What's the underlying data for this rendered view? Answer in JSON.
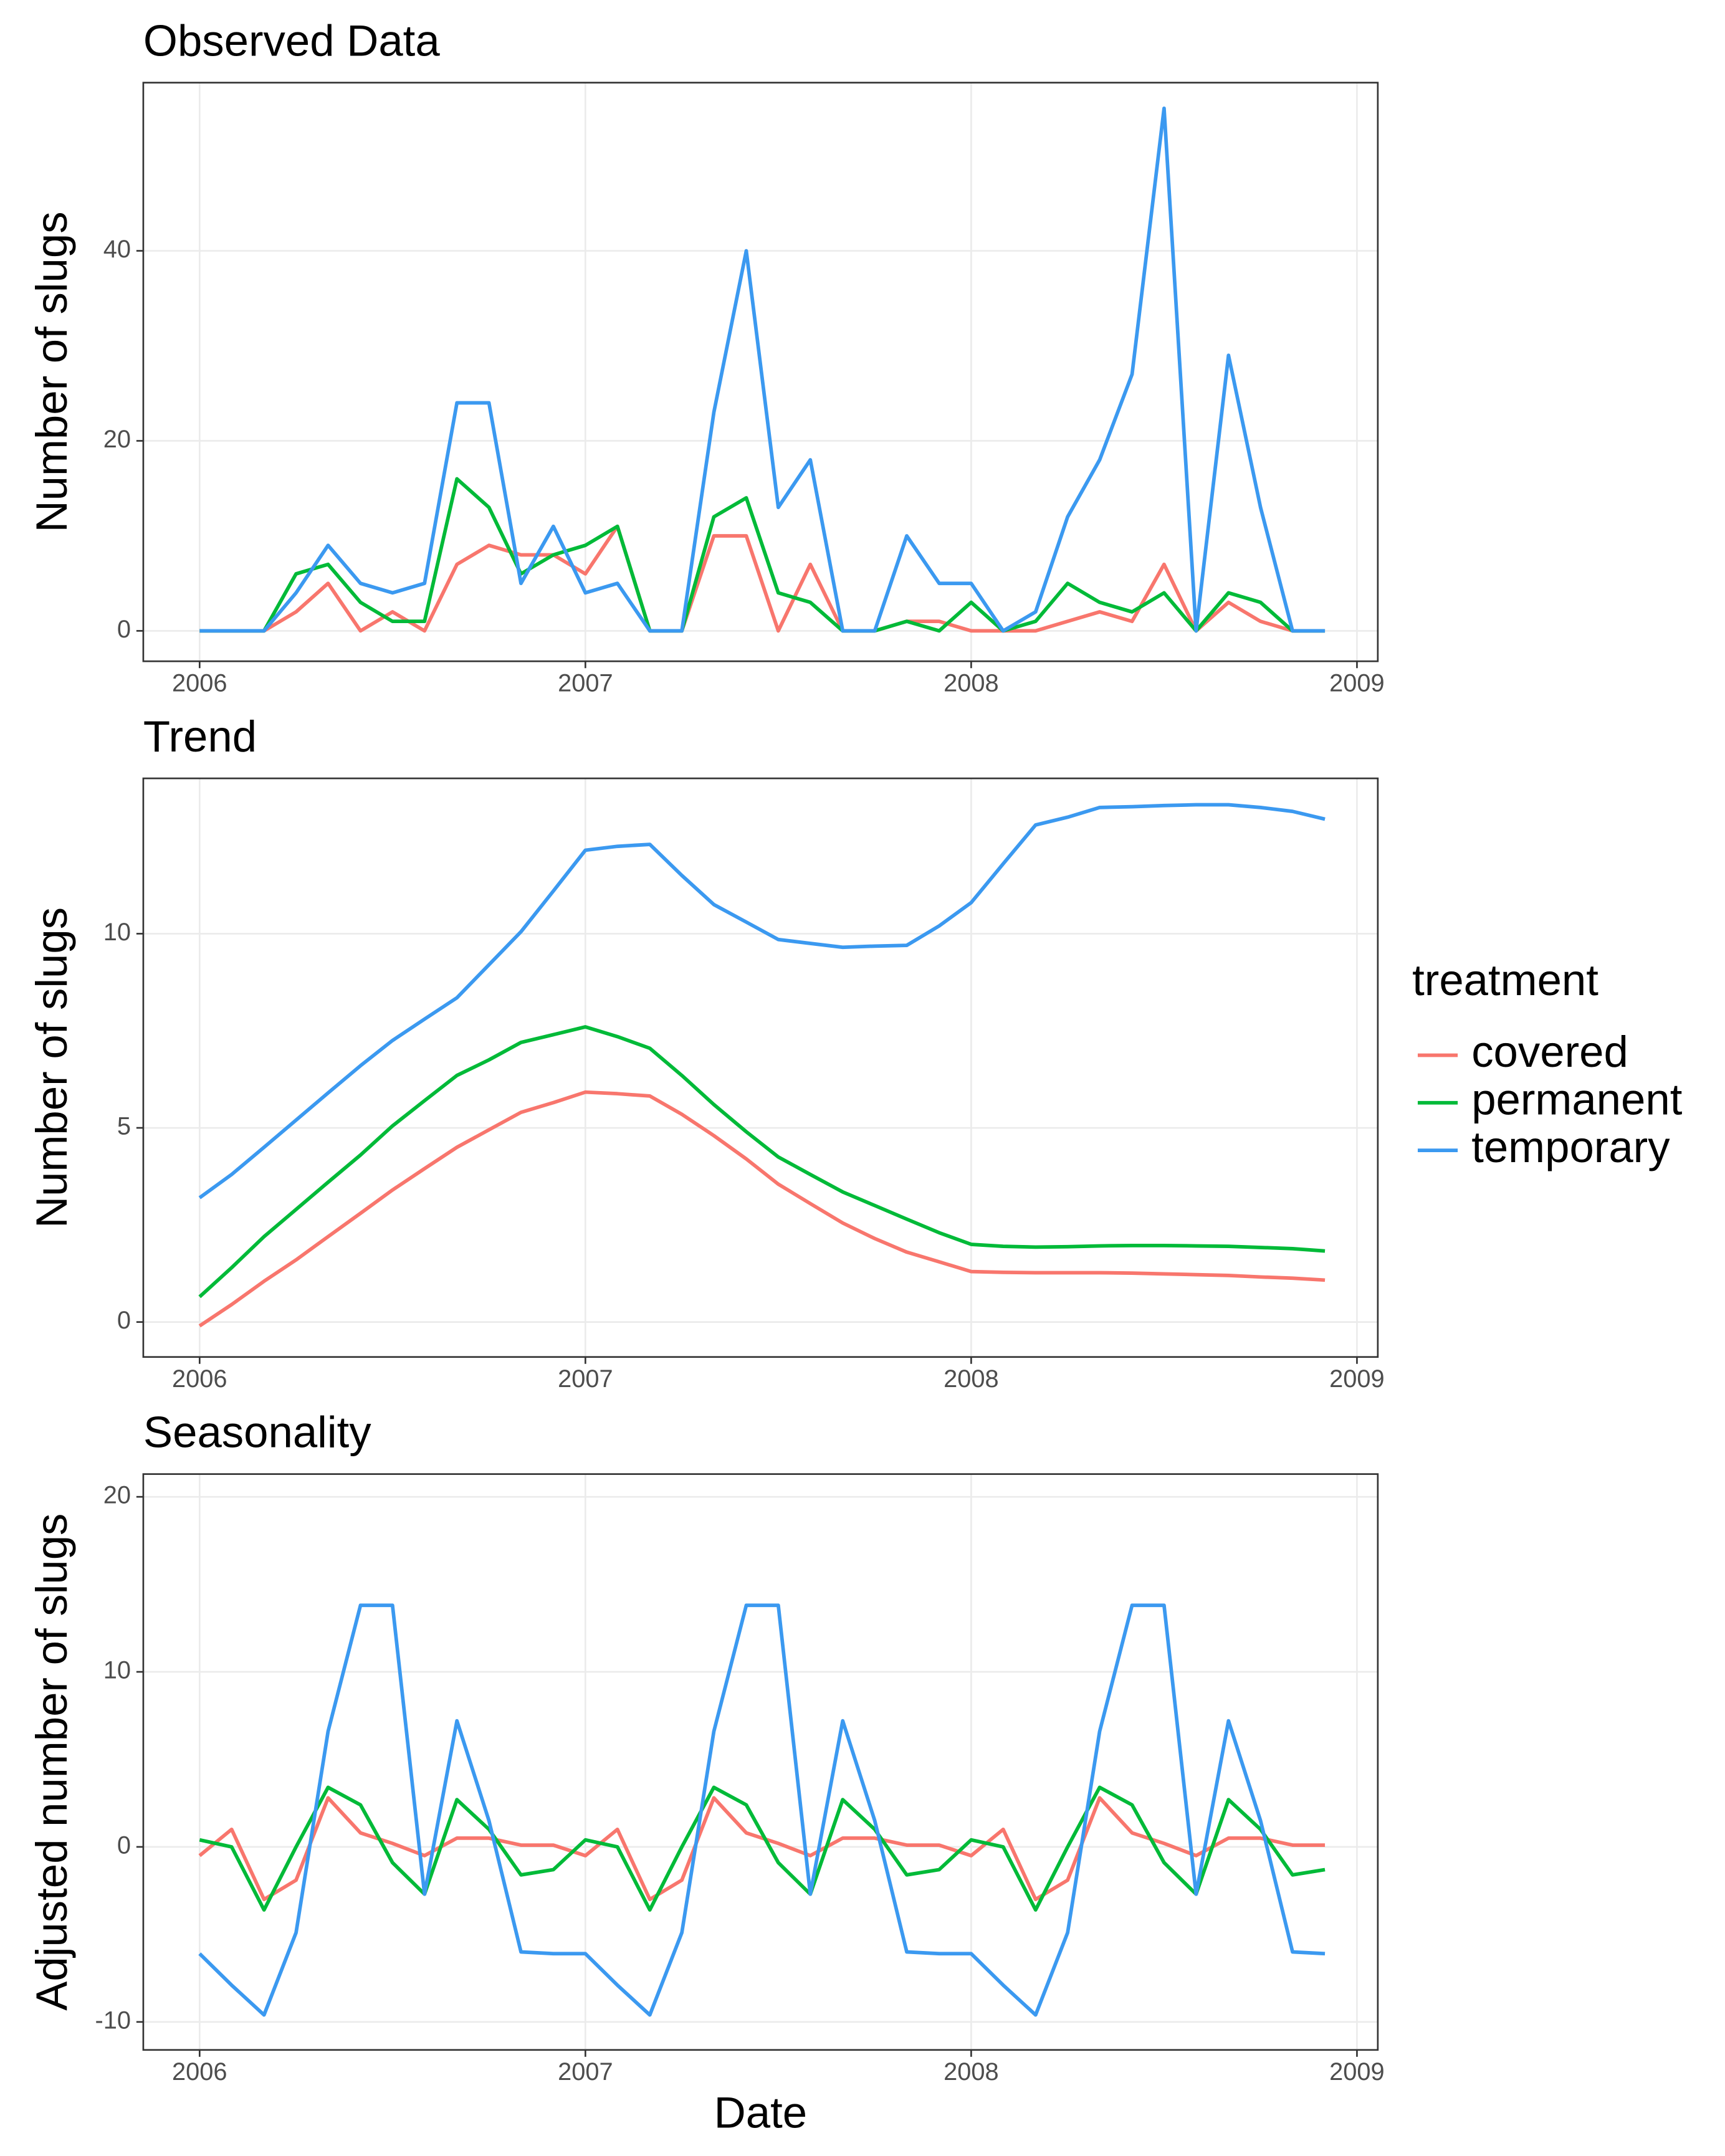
{
  "chart_data": [
    {
      "type": "line",
      "title": "Observed Data",
      "y_label": "Number of slugs",
      "x": [
        2006,
        2006.083,
        2006.167,
        2006.25,
        2006.333,
        2006.417,
        2006.5,
        2006.583,
        2006.667,
        2006.75,
        2006.833,
        2006.917,
        2007,
        2007.083,
        2007.167,
        2007.25,
        2007.333,
        2007.417,
        2007.5,
        2007.583,
        2007.667,
        2007.75,
        2007.833,
        2007.917,
        2008,
        2008.083,
        2008.167,
        2008.25,
        2008.333,
        2008.417,
        2008.5,
        2008.583,
        2008.667,
        2008.75,
        2008.833,
        2008.917
      ],
      "xlim": [
        2005.854,
        2009.054
      ],
      "xticks": [
        2006,
        2007,
        2008,
        2009
      ],
      "ylim": [
        -3.2,
        57.7
      ],
      "yticks": [
        0,
        20,
        40
      ],
      "grid": true,
      "series": [
        {
          "name": "covered",
          "color": "#F8766D",
          "values": [
            0,
            0,
            0,
            2,
            5,
            0,
            2,
            0,
            7,
            9,
            8,
            8,
            6,
            11,
            0,
            0,
            10,
            10,
            0,
            7,
            0,
            0,
            1,
            1,
            0,
            0,
            0,
            1,
            2,
            1,
            7,
            0,
            3,
            1,
            0,
            0
          ]
        },
        {
          "name": "permanent",
          "color": "#00BA38",
          "values": [
            0,
            0,
            0,
            6,
            7,
            3,
            1,
            1,
            16,
            13,
            6,
            8,
            9,
            11,
            0,
            0,
            12,
            14,
            4,
            3,
            0,
            0,
            1,
            0,
            3,
            0,
            1,
            5,
            3,
            2,
            4,
            0,
            4,
            3,
            0,
            0
          ]
        },
        {
          "name": "temporary",
          "color": "#3B99F0",
          "values": [
            0,
            0,
            0,
            4,
            9,
            5,
            4,
            5,
            24,
            24,
            5,
            11,
            4,
            5,
            0,
            0,
            23,
            40,
            13,
            18,
            0,
            0,
            10,
            5,
            5,
            0,
            2,
            12,
            18,
            27,
            55,
            0,
            29,
            13,
            0,
            0
          ]
        }
      ]
    },
    {
      "type": "line",
      "title": "Trend",
      "y_label": "Number of slugs",
      "legend_title": "treatment",
      "x": [
        2006,
        2006.083,
        2006.167,
        2006.25,
        2006.333,
        2006.417,
        2006.5,
        2006.583,
        2006.667,
        2006.75,
        2006.833,
        2006.917,
        2007,
        2007.083,
        2007.167,
        2007.25,
        2007.333,
        2007.417,
        2007.5,
        2007.583,
        2007.667,
        2007.75,
        2007.833,
        2007.917,
        2008,
        2008.083,
        2008.167,
        2008.25,
        2008.333,
        2008.417,
        2008.5,
        2008.583,
        2008.667,
        2008.75,
        2008.833,
        2008.917
      ],
      "xlim": [
        2005.854,
        2009.054
      ],
      "xticks": [
        2006,
        2007,
        2008,
        2009
      ],
      "ylim": [
        -0.9,
        14.0
      ],
      "yticks": [
        0,
        5,
        10
      ],
      "grid": true,
      "series": [
        {
          "name": "covered",
          "color": "#F8766D",
          "values": [
            -0.1,
            0.45,
            1.05,
            1.6,
            2.2,
            2.8,
            3.4,
            3.95,
            4.5,
            4.95,
            5.4,
            5.65,
            5.92,
            5.88,
            5.82,
            5.35,
            4.8,
            4.2,
            3.55,
            3.05,
            2.55,
            2.15,
            1.8,
            1.55,
            1.3,
            1.28,
            1.27,
            1.27,
            1.27,
            1.26,
            1.24,
            1.22,
            1.2,
            1.16,
            1.13,
            1.08
          ]
        },
        {
          "name": "permanent",
          "color": "#00BA38",
          "values": [
            0.65,
            1.4,
            2.2,
            2.9,
            3.6,
            4.3,
            5.05,
            5.7,
            6.35,
            6.75,
            7.2,
            7.4,
            7.6,
            7.35,
            7.05,
            6.35,
            5.6,
            4.9,
            4.25,
            3.8,
            3.35,
            3.0,
            2.65,
            2.3,
            2.0,
            1.95,
            1.93,
            1.94,
            1.96,
            1.97,
            1.97,
            1.96,
            1.95,
            1.92,
            1.89,
            1.83
          ]
        },
        {
          "name": "temporary",
          "color": "#3B99F0",
          "values": [
            3.2,
            3.8,
            4.5,
            5.2,
            5.9,
            6.6,
            7.25,
            7.8,
            8.35,
            9.2,
            10.05,
            11.1,
            12.15,
            12.25,
            12.3,
            11.5,
            10.75,
            10.3,
            9.85,
            9.75,
            9.65,
            9.68,
            9.7,
            10.2,
            10.8,
            11.8,
            12.8,
            13.0,
            13.25,
            13.27,
            13.3,
            13.32,
            13.32,
            13.25,
            13.15,
            12.95
          ]
        }
      ]
    },
    {
      "type": "line",
      "title": "Seasonality",
      "y_label": "Adjusted number of slugs",
      "x_label": "Date",
      "x": [
        2006,
        2006.083,
        2006.167,
        2006.25,
        2006.333,
        2006.417,
        2006.5,
        2006.583,
        2006.667,
        2006.75,
        2006.833,
        2006.917,
        2007,
        2007.083,
        2007.167,
        2007.25,
        2007.333,
        2007.417,
        2007.5,
        2007.583,
        2007.667,
        2007.75,
        2007.833,
        2007.917,
        2008,
        2008.083,
        2008.167,
        2008.25,
        2008.333,
        2008.417,
        2008.5,
        2008.583,
        2008.667,
        2008.75,
        2008.833,
        2008.917
      ],
      "xlim": [
        2005.854,
        2009.054
      ],
      "xticks": [
        2006,
        2007,
        2008,
        2009
      ],
      "ylim": [
        -11.6,
        21.3
      ],
      "yticks": [
        -10,
        0,
        10,
        20
      ],
      "grid": true,
      "series": [
        {
          "name": "covered",
          "color": "#F8766D",
          "values": [
            -0.5,
            1.0,
            -3.0,
            -1.9,
            2.8,
            0.8,
            0.2,
            -0.5,
            0.5,
            0.5,
            0.1,
            0.1,
            -0.5,
            1.0,
            -3.0,
            -1.9,
            2.8,
            0.8,
            0.2,
            -0.5,
            0.5,
            0.5,
            0.1,
            0.1,
            -0.5,
            1.0,
            -3.0,
            -1.9,
            2.8,
            0.8,
            0.2,
            -0.5,
            0.5,
            0.5,
            0.1,
            0.1
          ]
        },
        {
          "name": "permanent",
          "color": "#00BA38",
          "values": [
            0.4,
            0.0,
            -3.6,
            0.0,
            3.4,
            2.4,
            -0.9,
            -2.7,
            2.7,
            1.0,
            -1.6,
            -1.3,
            0.4,
            0.0,
            -3.6,
            0.0,
            3.4,
            2.4,
            -0.9,
            -2.7,
            2.7,
            1.0,
            -1.6,
            -1.3,
            0.4,
            0.0,
            -3.6,
            0.0,
            3.4,
            2.4,
            -0.9,
            -2.7,
            2.7,
            1.0,
            -1.6,
            -1.3
          ]
        },
        {
          "name": "temporary",
          "color": "#3B99F0",
          "values": [
            -6.1,
            -7.9,
            -9.6,
            -4.9,
            6.6,
            13.8,
            13.8,
            -2.7,
            7.2,
            1.5,
            -6.0,
            -6.1,
            -6.1,
            -7.9,
            -9.6,
            -4.9,
            6.6,
            13.8,
            13.8,
            -2.7,
            7.2,
            1.5,
            -6.0,
            -6.1,
            -6.1,
            -7.9,
            -9.6,
            -4.9,
            6.6,
            13.8,
            13.8,
            -2.7,
            7.2,
            1.5,
            -6.0,
            -6.1
          ]
        }
      ]
    }
  ]
}
